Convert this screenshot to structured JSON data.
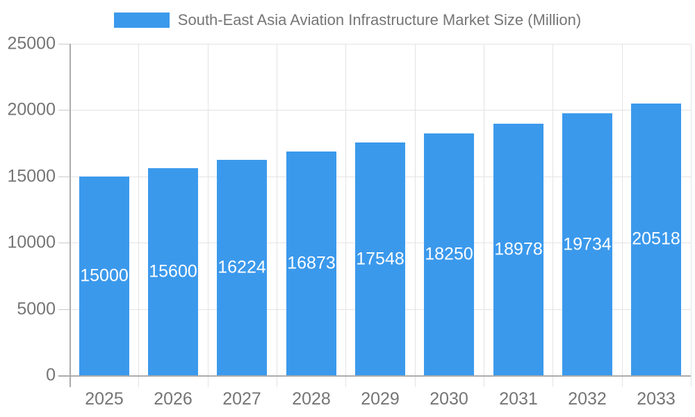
{
  "chart_data": {
    "type": "bar",
    "title": "South-East Asia Aviation Infrastructure Market Size (Million)",
    "legend": {
      "position": "top",
      "entries": [
        {
          "label": "South-East Asia Aviation Infrastructure Market Size (Million)",
          "color": "#3B99EC"
        }
      ]
    },
    "categories": [
      "2025",
      "2026",
      "2027",
      "2028",
      "2029",
      "2030",
      "2031",
      "2032",
      "2033"
    ],
    "series": [
      {
        "name": "South-East Asia Aviation Infrastructure Market Size (Million)",
        "values": [
          15000,
          15600,
          16224,
          16873,
          17548,
          18250,
          18978,
          19734,
          20518
        ]
      }
    ],
    "bar_value_labels": [
      "15000",
      "15600",
      "16224",
      "16873",
      "17548",
      "18250",
      "18978",
      "19734",
      "20518"
    ],
    "xlabel": "",
    "ylabel": "",
    "ylim": [
      0,
      25000
    ],
    "y_ticks": [
      0,
      5000,
      10000,
      15000,
      20000,
      25000
    ],
    "y_tick_labels": [
      "0",
      "5000",
      "10000",
      "15000",
      "20000",
      "25000"
    ],
    "grid": true,
    "colors": {
      "bar": "#3B99EC",
      "bar_label_text": "#FFFFFF",
      "axis_text": "#757575",
      "legend_text": "#757575",
      "gridline": "#E3E3E3",
      "axis_line": "#ABABAB",
      "tick": "#C9C9C9",
      "background": "#FFFFFF"
    }
  }
}
